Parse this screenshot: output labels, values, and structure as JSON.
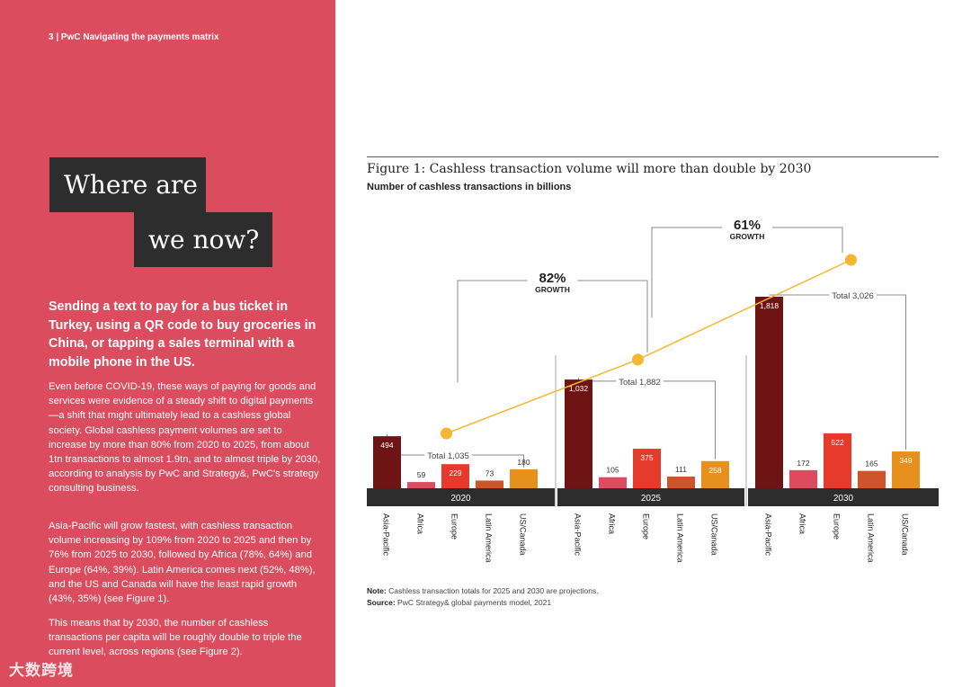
{
  "page": {
    "header": "3 | PwC Navigating the payments matrix",
    "title_line_1": "Where are",
    "title_line_2": "we now?",
    "intro_heading": "Sending a text to pay for a bus ticket in Turkey, using a QR code to buy groceries in China, or tapping a sales terminal with a mobile phone in the US.",
    "paragraphs": [
      "Even before COVID-19, these ways of paying for goods and services were evidence of a steady shift to digital payments—a shift that might ultimately lead to a cashless global society. Global cashless payment volumes are set to increase by more than 80% from 2020 to 2025, from about 1tn transactions to almost 1.9tn, and to almost triple by 2030, according to analysis by PwC and Strategy&, PwC's strategy consulting business.",
      "Asia-Pacific will grow fastest, with cashless transaction volume increasing by 109% from 2020 to 2025 and then by 76% from 2025 to 2030, followed by Africa (78%, 64%) and Europe (64%, 39%). Latin America comes next (52%, 48%), and the US and Canada will have the least rapid growth (43%, 35%) (see Figure 1).",
      "This means that by 2030, the number of cashless transactions per capita will be roughly double to triple the current level, across regions (see Figure 2)."
    ],
    "watermark": "大数跨境",
    "colors": {
      "left_panel": "#db4c5e",
      "title_block": "#2d2d2d",
      "accent_line": "#f5b731"
    }
  },
  "figure": {
    "title": "Figure 1: Cashless transaction volume will more than double by 2030",
    "subtitle": "Number of cashless transactions in billions",
    "note_label": "Note:",
    "note_text": "Cashless transaction totals for 2025 and 2030 are projections.",
    "source_label": "Source:",
    "source_text": "PwC Strategy& global payments model, 2021"
  },
  "chart_data": {
    "type": "bar",
    "regions": [
      "Asia-Pacific",
      "Africa",
      "Europe",
      "Latin America",
      "US/Canada"
    ],
    "region_colors": [
      "#6e1414",
      "#e04a5f",
      "#e63a2c",
      "#d0532a",
      "#e8901c"
    ],
    "groups": [
      {
        "year": "2020",
        "values": [
          494,
          59,
          229,
          73,
          180
        ],
        "total_label": "Total 1,035",
        "total": 1035
      },
      {
        "year": "2025",
        "values": [
          1032,
          105,
          375,
          111,
          258
        ],
        "total_label": "Total 1,882",
        "total": 1882
      },
      {
        "year": "2030",
        "values": [
          1818,
          172,
          522,
          165,
          349
        ],
        "total_label": "Total 3,026",
        "total": 3026
      }
    ],
    "value_labels": [
      [
        "494",
        "59",
        "229",
        "73",
        "180"
      ],
      [
        "1,032",
        "105",
        "375",
        "111",
        "258"
      ],
      [
        "1,818",
        "172",
        "522",
        "165",
        "349"
      ]
    ],
    "growth": [
      {
        "percent": "82%",
        "label": "GROWTH"
      },
      {
        "percent": "61%",
        "label": "GROWTH"
      }
    ],
    "ylim": [
      0,
      3100
    ]
  }
}
